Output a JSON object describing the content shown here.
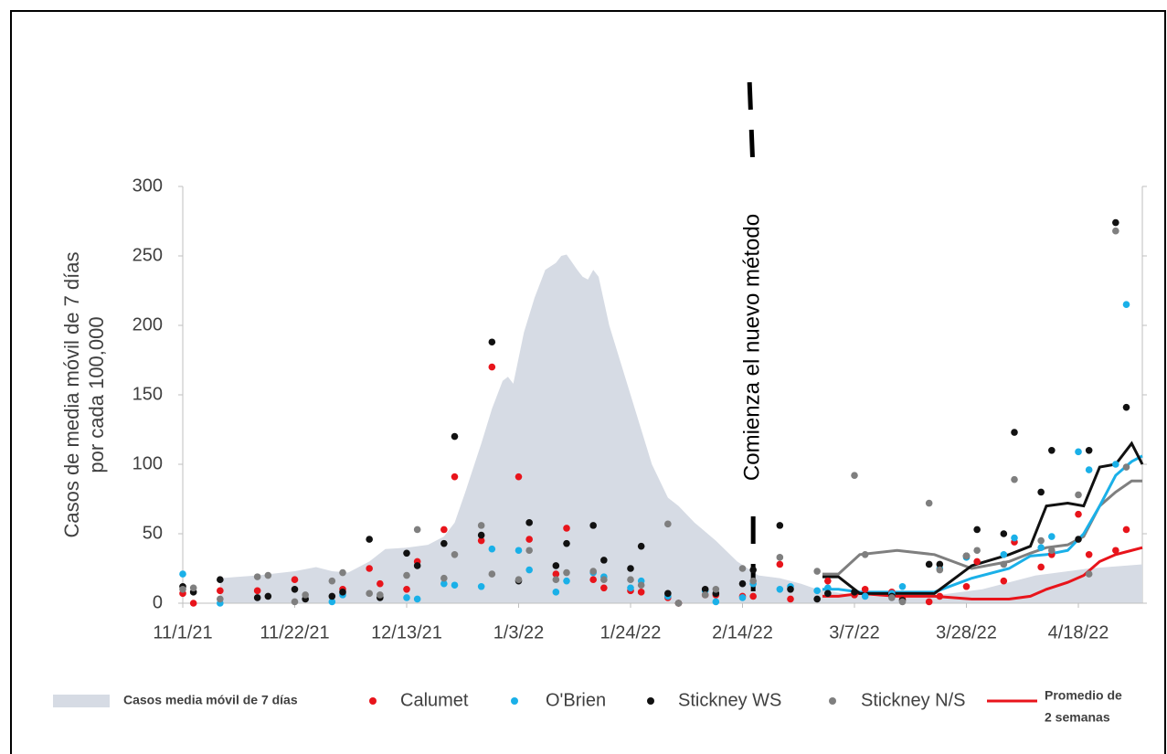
{
  "chart_data": {
    "type": "scatter",
    "ylabel": [
      "Casos de media móvil de 7 días",
      "por cada 100,000"
    ],
    "xlim": [
      "2021-11-01",
      "2022-04-30"
    ],
    "ylim": [
      0,
      300
    ],
    "yticks": [
      0,
      50,
      100,
      150,
      200,
      250,
      300
    ],
    "xticks": [
      {
        "value": "2021-11-01",
        "label": "11/1/21"
      },
      {
        "value": "2021-11-22",
        "label": "11/22/21"
      },
      {
        "value": "2021-12-13",
        "label": "12/13/21"
      },
      {
        "value": "2022-01-03",
        "label": "1/3/22"
      },
      {
        "value": "2022-01-24",
        "label": "1/24/22"
      },
      {
        "value": "2022-02-14",
        "label": "2/14/22"
      },
      {
        "value": "2022-03-07",
        "label": "3/7/22"
      },
      {
        "value": "2022-03-28",
        "label": "3/28/22"
      },
      {
        "value": "2022-04-18",
        "label": "4/18/22"
      }
    ],
    "area": {
      "name": "Casos media móvil de 7 días",
      "color": "#d6dbe4",
      "x": [
        "2021-11-08",
        "2021-11-15",
        "2021-11-22",
        "2021-11-26",
        "2021-11-29",
        "2021-12-02",
        "2021-12-06",
        "2021-12-09",
        "2021-12-13",
        "2021-12-17",
        "2021-12-20",
        "2021-12-22",
        "2021-12-24",
        "2021-12-27",
        "2021-12-29",
        "2021-12-31",
        "2022-01-01",
        "2022-01-02",
        "2022-01-04",
        "2022-01-06",
        "2022-01-08",
        "2022-01-10",
        "2022-01-11",
        "2022-01-12",
        "2022-01-14",
        "2022-01-15",
        "2022-01-16",
        "2022-01-17",
        "2022-01-18",
        "2022-01-20",
        "2022-01-24",
        "2022-01-28",
        "2022-01-31",
        "2022-02-02",
        "2022-02-05",
        "2022-02-09",
        "2022-02-13",
        "2022-02-17",
        "2022-02-21",
        "2022-02-25",
        "2022-02-28",
        "2022-03-05",
        "2022-03-11",
        "2022-03-21",
        "2022-03-31",
        "2022-04-10",
        "2022-04-20",
        "2022-04-30"
      ],
      "values": [
        18,
        20,
        23,
        26,
        23,
        22,
        30,
        39,
        40,
        42,
        48,
        58,
        80,
        115,
        140,
        160,
        163,
        158,
        195,
        220,
        240,
        245,
        250,
        251,
        240,
        235,
        233,
        240,
        235,
        200,
        150,
        100,
        76,
        70,
        58,
        45,
        30,
        20,
        18,
        14,
        10,
        7,
        5,
        5,
        10,
        20,
        25,
        28
      ]
    },
    "x": [
      "2021-11-01",
      "2021-11-03",
      "2021-11-08",
      "2021-11-10",
      "2021-11-15",
      "2021-11-17",
      "2021-11-22",
      "2021-11-24",
      "2021-11-29",
      "2021-12-01",
      "2021-12-06",
      "2021-12-08",
      "2021-12-13",
      "2021-12-15",
      "2021-12-20",
      "2021-12-22",
      "2021-12-27",
      "2021-12-29",
      "2022-01-03",
      "2022-01-05",
      "2022-01-10",
      "2022-01-12",
      "2022-01-17",
      "2022-01-19",
      "2022-01-24",
      "2022-01-26",
      "2022-01-31",
      "2022-02-02",
      "2022-02-07",
      "2022-02-09",
      "2022-02-14",
      "2022-02-16",
      "2022-02-21",
      "2022-02-23",
      "2022-02-28",
      "2022-03-02",
      "2022-03-07",
      "2022-03-09",
      "2022-03-14",
      "2022-03-16",
      "2022-03-21",
      "2022-03-23",
      "2022-03-28",
      "2022-03-30",
      "2022-04-04",
      "2022-04-06",
      "2022-04-11",
      "2022-04-13",
      "2022-04-18",
      "2022-04-20",
      "2022-04-25",
      "2022-04-27"
    ],
    "series": [
      {
        "name": "Calumet",
        "color": "#e8141b",
        "values": [
          7,
          0,
          9,
          null,
          9,
          null,
          17,
          null,
          null,
          10,
          25,
          14,
          10,
          30,
          53,
          91,
          45,
          170,
          91,
          46,
          21,
          54,
          17,
          11,
          9,
          8,
          4,
          0,
          6,
          6,
          5,
          5,
          28,
          3,
          null,
          16,
          6,
          10,
          8,
          3,
          1,
          5,
          12,
          30,
          16,
          44,
          26,
          35,
          64,
          35,
          38,
          53
        ]
      },
      {
        "name": "O'Brien",
        "color": "#1ab0e8",
        "values": [
          21,
          null,
          0,
          null,
          null,
          null,
          null,
          null,
          1,
          6,
          null,
          null,
          4,
          3,
          14,
          13,
          12,
          39,
          38,
          24,
          8,
          16,
          22,
          19,
          11,
          16,
          5,
          null,
          9,
          1,
          4,
          14,
          10,
          12,
          9,
          11,
          null,
          5,
          7,
          12,
          null,
          25,
          33,
          null,
          35,
          47,
          40,
          48,
          109,
          96,
          100,
          215
        ]
      },
      {
        "name": "Stickney WS",
        "color": "#111111",
        "values": [
          12,
          8,
          17,
          null,
          4,
          5,
          10,
          3,
          5,
          8,
          46,
          4,
          36,
          27,
          43,
          120,
          49,
          188,
          16,
          58,
          27,
          43,
          56,
          31,
          25,
          41,
          7,
          0,
          10,
          7,
          14,
          24,
          56,
          10,
          3,
          7,
          8,
          null,
          5,
          2,
          28,
          28,
          34,
          53,
          50,
          123,
          80,
          110,
          46,
          110,
          274,
          141
        ]
      },
      {
        "name": "Stickney N/S",
        "color": "#7f7f7f",
        "values": [
          10,
          11,
          3,
          null,
          19,
          20,
          1,
          6,
          16,
          22,
          7,
          6,
          20,
          53,
          18,
          35,
          56,
          21,
          17,
          38,
          17,
          22,
          23,
          17,
          17,
          13,
          57,
          0,
          6,
          10,
          25,
          16,
          33,
          null,
          23,
          null,
          92,
          35,
          4,
          1,
          72,
          24,
          34,
          38,
          28,
          89,
          45,
          38,
          78,
          21,
          268,
          98
        ]
      }
    ],
    "lines": {
      "label": [
        "Promedio de",
        "2 semanas"
      ],
      "x": [
        "2022-03-01",
        "2022-03-04",
        "2022-03-08",
        "2022-03-15",
        "2022-03-22",
        "2022-03-29",
        "2022-04-05",
        "2022-04-09",
        "2022-04-12",
        "2022-04-16",
        "2022-04-19",
        "2022-04-22",
        "2022-04-25",
        "2022-04-28",
        "2022-04-30"
      ],
      "series": [
        {
          "color": "#e8141b",
          "values": [
            5,
            5,
            7,
            5,
            5,
            3,
            3,
            5,
            10,
            15,
            20,
            30,
            35,
            38,
            40
          ]
        },
        {
          "color": "#7f7f7f",
          "values": [
            21,
            21,
            35,
            38,
            35,
            25,
            30,
            36,
            40,
            42,
            48,
            70,
            80,
            88,
            88
          ]
        },
        {
          "color": "#1ab0e8",
          "values": [
            10,
            10,
            8,
            8,
            8,
            18,
            25,
            34,
            35,
            38,
            50,
            70,
            92,
            102,
            106
          ]
        },
        {
          "color": "#111111",
          "values": [
            19,
            19,
            7,
            7,
            7,
            27,
            35,
            41,
            70,
            72,
            70,
            98,
            100,
            115,
            100
          ]
        }
      ]
    },
    "annotation": {
      "x": "2022-02-16",
      "text": "Comienza el nuevo método"
    }
  }
}
